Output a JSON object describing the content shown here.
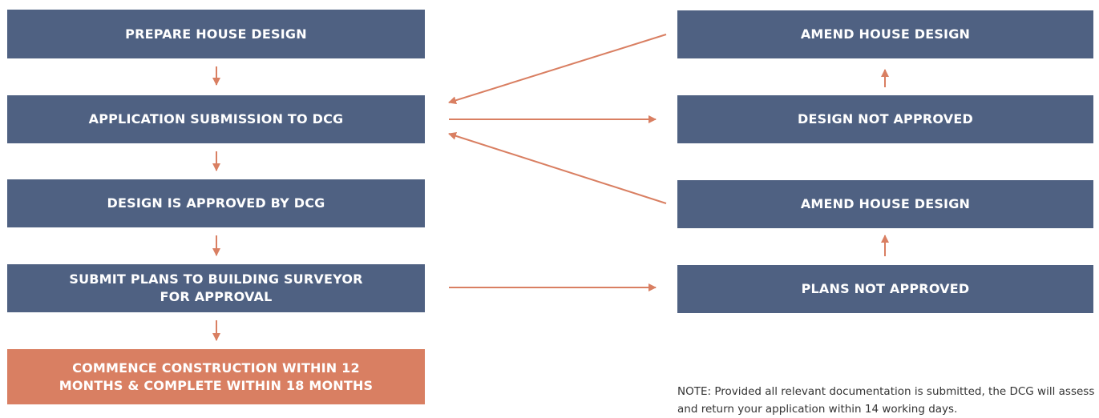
{
  "flow_left": [
    {
      "id": "prepare",
      "label": "PREPARE HOUSE DESIGN"
    },
    {
      "id": "submission",
      "label": "APPLICATION SUBMISSION TO DCG"
    },
    {
      "id": "approved",
      "label": "DESIGN IS APPROVED BY DCG"
    },
    {
      "id": "surveyor",
      "label": "SUBMIT PLANS TO BUILDING SURVEYOR\nFOR APPROVAL"
    },
    {
      "id": "construction",
      "label": "COMMENCE CONSTRUCTION WITHIN 12\nMONTHS & COMPLETE WITHIN 18 MONTHS"
    }
  ],
  "flow_right": [
    {
      "id": "amend-1",
      "label": "AMEND HOUSE DESIGN"
    },
    {
      "id": "not-approved",
      "label": "DESIGN NOT APPROVED"
    },
    {
      "id": "amend-2",
      "label": "AMEND HOUSE DESIGN"
    },
    {
      "id": "plans-not-approved",
      "label": "PLANS NOT APPROVED"
    }
  ],
  "note": "NOTE: Provided all relevant documentation is submitted, the DCG will assess and return your application within 14 working days.",
  "colors": {
    "box_blue": "#4f6182",
    "box_orange": "#d97f62",
    "arrow": "#d97f62"
  }
}
